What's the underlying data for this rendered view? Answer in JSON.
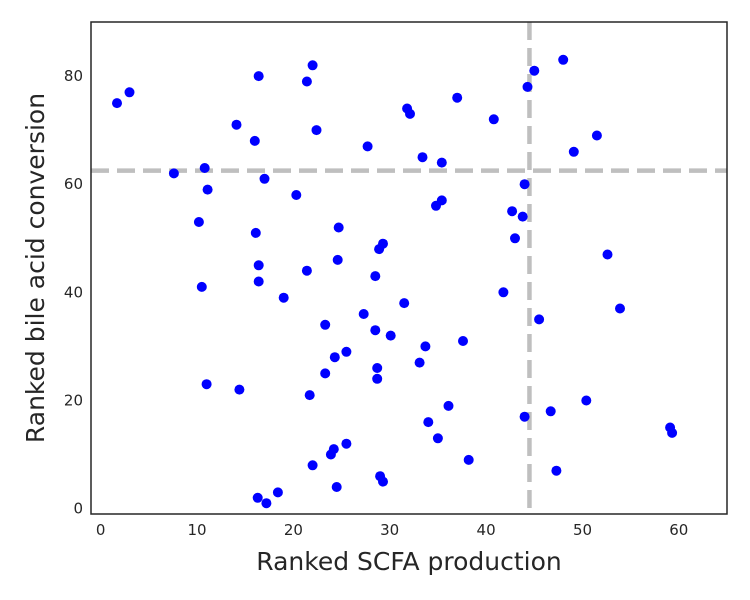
{
  "chart_data": {
    "type": "scatter",
    "title": "",
    "xlabel": "Ranked SCFA production",
    "ylabel": "Ranked bile acid conversion",
    "xlim": [
      -1,
      65
    ],
    "ylim": [
      -1,
      90
    ],
    "xticks": [
      0,
      10,
      20,
      30,
      40,
      50,
      60
    ],
    "yticks": [
      0,
      20,
      40,
      60,
      80
    ],
    "grid": false,
    "legend": false,
    "point_color": "#0000ff",
    "reference_line_color": "#bfbfbf",
    "reference_lines": {
      "vertical_x": 44.5,
      "horizontal_y": 62.5
    },
    "series": [
      {
        "points": [
          [
            1.7,
            75
          ],
          [
            3,
            77
          ],
          [
            16.4,
            80
          ],
          [
            21.4,
            79
          ],
          [
            22,
            82
          ],
          [
            14.1,
            71
          ],
          [
            16,
            68
          ],
          [
            22.4,
            70
          ],
          [
            27.7,
            67
          ],
          [
            31.8,
            74
          ],
          [
            32.1,
            73
          ],
          [
            37,
            76
          ],
          [
            40.8,
            72
          ],
          [
            44.3,
            78
          ],
          [
            45,
            81
          ],
          [
            48,
            83
          ],
          [
            51.5,
            69
          ],
          [
            49.1,
            66
          ],
          [
            7.6,
            62
          ],
          [
            10.8,
            63
          ],
          [
            11.1,
            59
          ],
          [
            17,
            61
          ],
          [
            20.3,
            58
          ],
          [
            33.4,
            65
          ],
          [
            35.4,
            64
          ],
          [
            34.8,
            56
          ],
          [
            35.4,
            57
          ],
          [
            44,
            60
          ],
          [
            42.7,
            55
          ],
          [
            43.8,
            54
          ],
          [
            43,
            50
          ],
          [
            10.2,
            53
          ],
          [
            16.1,
            51
          ],
          [
            24.7,
            52
          ],
          [
            28.9,
            48
          ],
          [
            29.3,
            49
          ],
          [
            52.6,
            47
          ],
          [
            16.4,
            45
          ],
          [
            24.6,
            46
          ],
          [
            10.5,
            41
          ],
          [
            16.4,
            42
          ],
          [
            21.4,
            44
          ],
          [
            28.5,
            43
          ],
          [
            19,
            39
          ],
          [
            41.8,
            40
          ],
          [
            31.5,
            38
          ],
          [
            27.3,
            36
          ],
          [
            23.3,
            34
          ],
          [
            28.5,
            33
          ],
          [
            30.1,
            32
          ],
          [
            45.5,
            35
          ],
          [
            53.9,
            37
          ],
          [
            33.7,
            30
          ],
          [
            37.6,
            31
          ],
          [
            24.3,
            28
          ],
          [
            25.5,
            29
          ],
          [
            23.3,
            25
          ],
          [
            28.7,
            26
          ],
          [
            28.7,
            24
          ],
          [
            33.1,
            27
          ],
          [
            11,
            23
          ],
          [
            14.4,
            22
          ],
          [
            21.7,
            21
          ],
          [
            36.1,
            19
          ],
          [
            34,
            16
          ],
          [
            35,
            13
          ],
          [
            44,
            17
          ],
          [
            46.7,
            18
          ],
          [
            50.4,
            20
          ],
          [
            23.9,
            10
          ],
          [
            24.2,
            11
          ],
          [
            25.5,
            12
          ],
          [
            22,
            8
          ],
          [
            38.2,
            9
          ],
          [
            29,
            6
          ],
          [
            29.3,
            5
          ],
          [
            24.5,
            4
          ],
          [
            47.3,
            7
          ],
          [
            59.1,
            15
          ],
          [
            59.3,
            14
          ],
          [
            16.3,
            2
          ],
          [
            17.2,
            1
          ],
          [
            18.4,
            3
          ]
        ]
      }
    ]
  }
}
